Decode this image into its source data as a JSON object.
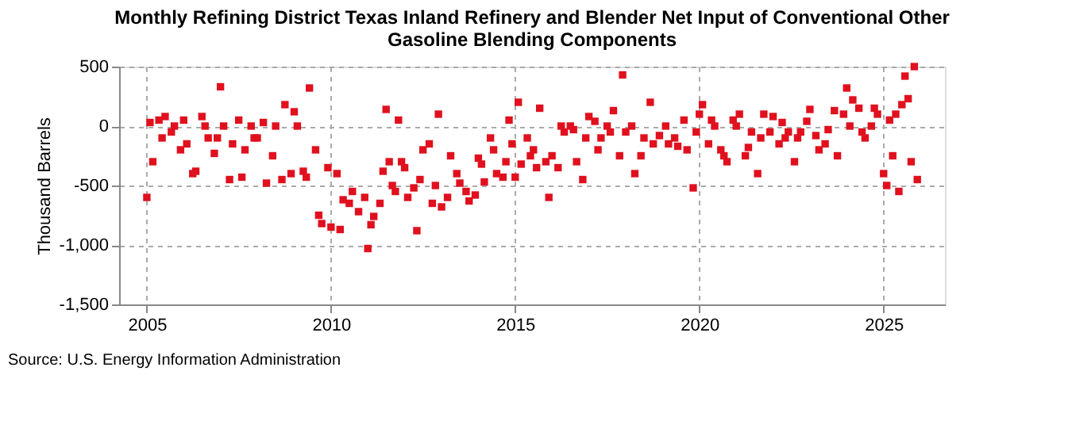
{
  "chart_data": {
    "type": "scatter",
    "title": "Monthly Refining District Texas Inland Refinery and Blender Net Input of Conventional Other Gasoline Blending Components",
    "ylabel": "Thousand Barrels",
    "x": [
      "2005-01",
      "2005-02",
      "2005-03",
      "2005-05",
      "2005-06",
      "2005-07",
      "2005-09",
      "2005-10",
      "2005-12",
      "2006-01",
      "2006-02",
      "2006-04",
      "2006-05",
      "2006-07",
      "2006-08",
      "2006-09",
      "2006-11",
      "2006-12",
      "2007-01",
      "2007-02",
      "2007-04",
      "2007-05",
      "2007-07",
      "2007-08",
      "2007-09",
      "2007-11",
      "2007-12",
      "2008-01",
      "2008-03",
      "2008-04",
      "2008-06",
      "2008-07",
      "2008-09",
      "2008-10",
      "2008-12",
      "2009-01",
      "2009-02",
      "2009-04",
      "2009-05",
      "2009-06",
      "2009-08",
      "2009-09",
      "2009-10",
      "2009-12",
      "2010-01",
      "2010-03",
      "2010-04",
      "2010-05",
      "2010-07",
      "2010-08",
      "2010-10",
      "2010-12",
      "2011-01",
      "2011-02",
      "2011-03",
      "2011-05",
      "2011-06",
      "2011-07",
      "2011-08",
      "2011-09",
      "2011-10",
      "2011-11",
      "2011-12",
      "2012-01",
      "2012-02",
      "2012-04",
      "2012-05",
      "2012-06",
      "2012-07",
      "2012-09",
      "2012-10",
      "2012-11",
      "2012-12",
      "2013-01",
      "2013-03",
      "2013-04",
      "2013-06",
      "2013-07",
      "2013-09",
      "2013-10",
      "2013-12",
      "2014-01",
      "2014-02",
      "2014-03",
      "2014-05",
      "2014-06",
      "2014-07",
      "2014-09",
      "2014-10",
      "2014-11",
      "2014-12",
      "2015-01",
      "2015-02",
      "2015-03",
      "2015-05",
      "2015-06",
      "2015-07",
      "2015-08",
      "2015-09",
      "2015-11",
      "2015-12",
      "2016-01",
      "2016-03",
      "2016-04",
      "2016-05",
      "2016-07",
      "2016-08",
      "2016-09",
      "2016-11",
      "2016-12",
      "2017-01",
      "2017-03",
      "2017-04",
      "2017-05",
      "2017-07",
      "2017-08",
      "2017-09",
      "2017-11",
      "2017-12",
      "2018-01",
      "2018-03",
      "2018-04",
      "2018-06",
      "2018-07",
      "2018-09",
      "2018-10",
      "2018-12",
      "2019-02",
      "2019-03",
      "2019-05",
      "2019-06",
      "2019-08",
      "2019-09",
      "2019-11",
      "2019-12",
      "2020-01",
      "2020-02",
      "2020-04",
      "2020-05",
      "2020-06",
      "2020-08",
      "2020-09",
      "2020-10",
      "2020-12",
      "2021-01",
      "2021-02",
      "2021-04",
      "2021-05",
      "2021-06",
      "2021-08",
      "2021-09",
      "2021-10",
      "2021-12",
      "2022-01",
      "2022-03",
      "2022-04",
      "2022-05",
      "2022-06",
      "2022-08",
      "2022-09",
      "2022-10",
      "2022-12",
      "2023-01",
      "2023-03",
      "2023-04",
      "2023-06",
      "2023-07",
      "2023-09",
      "2023-10",
      "2023-12",
      "2024-01",
      "2024-02",
      "2024-03",
      "2024-05",
      "2024-06",
      "2024-07",
      "2024-09",
      "2024-10",
      "2024-11",
      "2025-01",
      "2025-02",
      "2025-03",
      "2025-04",
      "2025-05",
      "2025-06",
      "2025-07",
      "2025-08",
      "2025-09",
      "2025-10",
      "2025-11",
      "2025-12"
    ],
    "values": [
      -600,
      30,
      -300,
      50,
      -100,
      80,
      -50,
      0,
      -200,
      50,
      -150,
      -400,
      -380,
      80,
      0,
      -100,
      -230,
      -100,
      330,
      0,
      -450,
      -150,
      50,
      -430,
      -200,
      0,
      -100,
      -100,
      30,
      -480,
      -250,
      0,
      -450,
      180,
      -400,
      120,
      0,
      -380,
      -430,
      320,
      -200,
      -750,
      -820,
      -350,
      -850,
      -400,
      -870,
      -620,
      -650,
      -550,
      -720,
      -600,
      -1030,
      -830,
      -760,
      -650,
      -380,
      140,
      -300,
      -500,
      -550,
      50,
      -300,
      -350,
      -600,
      -520,
      -880,
      -450,
      -200,
      -150,
      -650,
      -500,
      100,
      -680,
      -600,
      -250,
      -400,
      -480,
      -550,
      -630,
      -580,
      -270,
      -320,
      -470,
      -100,
      -200,
      -400,
      -430,
      -300,
      50,
      -150,
      -430,
      200,
      -320,
      -100,
      -250,
      -200,
      -350,
      150,
      -300,
      -600,
      -250,
      -350,
      0,
      -50,
      0,
      -30,
      -300,
      -450,
      -100,
      80,
      40,
      -200,
      -100,
      0,
      -50,
      130,
      -250,
      430,
      -50,
      0,
      -400,
      -250,
      -100,
      200,
      -150,
      -80,
      0,
      -150,
      -100,
      -170,
      50,
      -200,
      -520,
      -50,
      100,
      180,
      -150,
      50,
      0,
      -200,
      -250,
      -300,
      50,
      0,
      100,
      -250,
      -180,
      -50,
      -400,
      -100,
      100,
      -50,
      80,
      -150,
      30,
      -100,
      -50,
      -300,
      -100,
      -50,
      40,
      140,
      -80,
      -200,
      -150,
      -30,
      130,
      -250,
      100,
      320,
      0,
      220,
      150,
      -50,
      -100,
      0,
      150,
      100,
      -400,
      -500,
      50,
      -250,
      100,
      -550,
      180,
      420,
      230,
      -300,
      500,
      -450
    ],
    "color": "#e0101e",
    "marker": "square",
    "xlim": [
      "2004-04",
      "2026-09"
    ],
    "xticks": [
      {
        "value": "2005-01",
        "label": "2005"
      },
      {
        "value": "2010-01",
        "label": "2010"
      },
      {
        "value": "2015-01",
        "label": "2015"
      },
      {
        "value": "2020-01",
        "label": "2020"
      },
      {
        "value": "2025-01",
        "label": "2025"
      }
    ],
    "ylim": [
      -1500,
      500
    ],
    "yticks": [
      {
        "value": -1500,
        "label": "-1,500"
      },
      {
        "value": -1000,
        "label": "-1,000"
      },
      {
        "value": -500,
        "label": "-500"
      },
      0,
      500
    ],
    "grid": true,
    "annotations": [
      "Source: U.S. Energy Information Administration"
    ]
  }
}
